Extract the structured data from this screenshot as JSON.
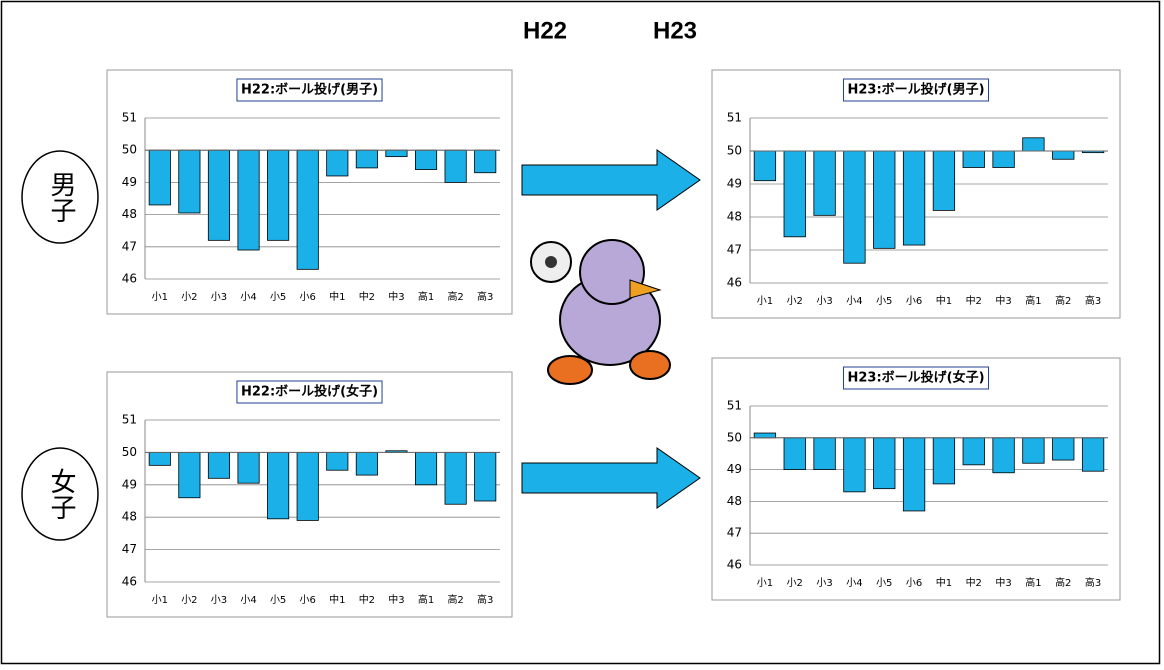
{
  "header": {
    "left": "H22",
    "right": "H23"
  },
  "row_labels": [
    "男子",
    "女子"
  ],
  "chart_data": [
    {
      "type": "bar",
      "title": "H22:ボール投げ(男子)",
      "categories": [
        "小1",
        "小2",
        "小3",
        "小4",
        "小5",
        "小6",
        "中1",
        "中2",
        "中3",
        "高1",
        "高2",
        "高3"
      ],
      "values": [
        48.3,
        48.05,
        47.2,
        46.9,
        47.2,
        46.3,
        49.2,
        49.45,
        49.8,
        49.4,
        49.0,
        49.3
      ],
      "color": "#1cb0e8",
      "ylim": [
        46,
        51
      ],
      "yticks": [
        46,
        47,
        48,
        49,
        50,
        51
      ],
      "x_axis_crosses": 50,
      "grid": true
    },
    {
      "type": "bar",
      "title": "H23:ボール投げ(男子)",
      "categories": [
        "小1",
        "小2",
        "小3",
        "小4",
        "小5",
        "小6",
        "中1",
        "中2",
        "中3",
        "高1",
        "高2",
        "高3"
      ],
      "values": [
        49.1,
        47.4,
        48.05,
        46.6,
        47.05,
        47.15,
        48.2,
        49.5,
        49.5,
        50.4,
        49.75,
        49.95
      ],
      "color": "#1cb0e8",
      "ylim": [
        46,
        51
      ],
      "yticks": [
        46,
        47,
        48,
        49,
        50,
        51
      ],
      "x_axis_crosses": 50,
      "grid": true
    },
    {
      "type": "bar",
      "title": "H22:ボール投げ(女子)",
      "categories": [
        "小1",
        "小2",
        "小3",
        "小4",
        "小5",
        "小6",
        "中1",
        "中2",
        "中3",
        "高1",
        "高2",
        "高3"
      ],
      "values": [
        49.6,
        48.6,
        49.2,
        49.05,
        47.95,
        47.9,
        49.45,
        49.3,
        50.05,
        49.0,
        48.4,
        48.5
      ],
      "color": "#1cb0e8",
      "ylim": [
        46,
        51
      ],
      "yticks": [
        46,
        47,
        48,
        49,
        50,
        51
      ],
      "x_axis_crosses": 50,
      "grid": true
    },
    {
      "type": "bar",
      "title": "H23:ボール投げ(女子)",
      "categories": [
        "小1",
        "小2",
        "小3",
        "小4",
        "小5",
        "小6",
        "中1",
        "中2",
        "中3",
        "高1",
        "高2",
        "高3"
      ],
      "values": [
        50.15,
        49.0,
        49.0,
        48.3,
        48.4,
        47.7,
        48.55,
        49.15,
        48.9,
        49.2,
        49.3,
        48.95
      ],
      "color": "#1cb0e8",
      "ylim": [
        46,
        51
      ],
      "yticks": [
        46,
        47,
        48,
        49,
        50,
        51
      ],
      "x_axis_crosses": 50,
      "grid": true
    }
  ]
}
